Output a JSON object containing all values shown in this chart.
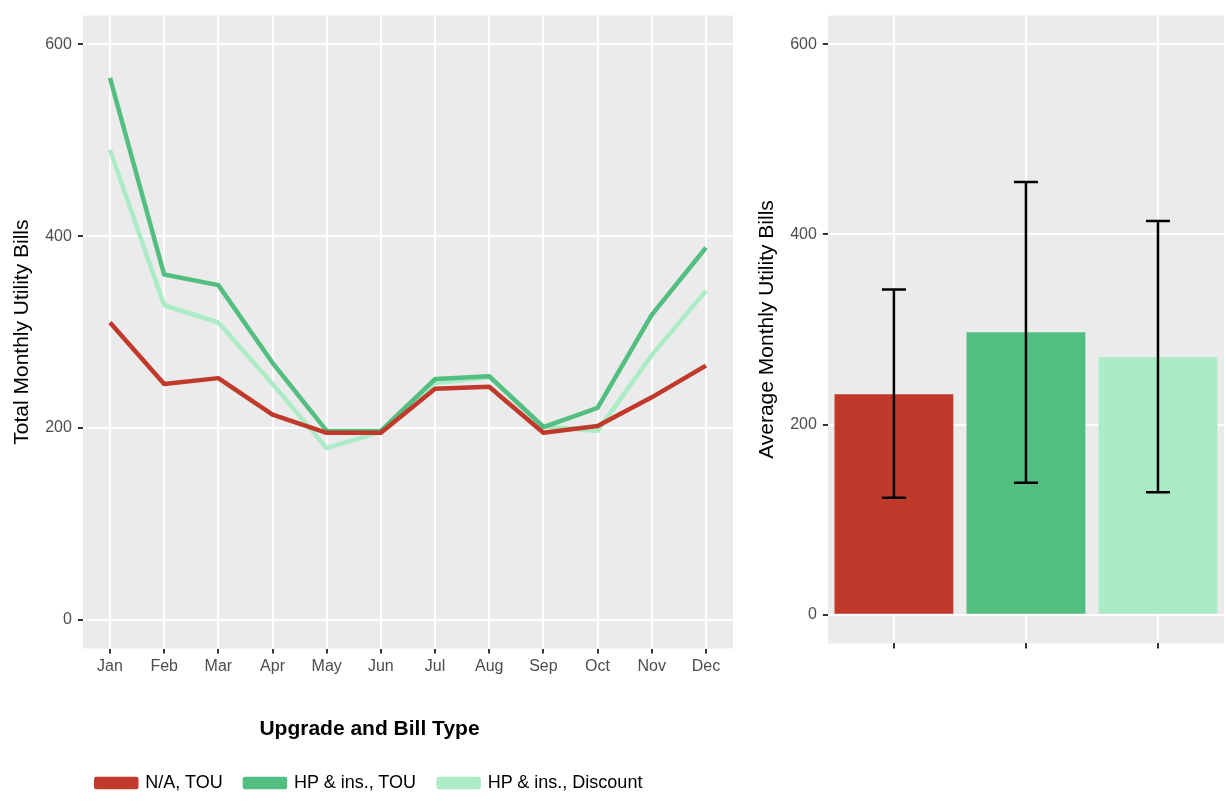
{
  "chart_data": [
    {
      "type": "line",
      "categories": [
        "Jan",
        "Feb",
        "Mar",
        "Apr",
        "May",
        "Jun",
        "Jul",
        "Aug",
        "Sep",
        "Oct",
        "Nov",
        "Dec"
      ],
      "ylabel": "Total Monthly Utility Bills",
      "ylim": [
        -30,
        630
      ],
      "yticks": [
        0,
        200,
        400,
        600
      ],
      "grid": true,
      "legend": "bottom",
      "legend_title": "Upgrade and Bill Type",
      "marker": "none",
      "line_style": "solid",
      "series": [
        {
          "name": "N/A, TOU",
          "color": "#c0392b",
          "values": [
            310,
            246,
            252,
            214,
            195,
            195,
            241,
            243,
            195,
            202,
            232,
            265
          ]
        },
        {
          "name": "HP & ins., TOU",
          "color": "#52be80",
          "values": [
            565,
            360,
            349,
            268,
            197,
            197,
            251,
            254,
            201,
            221,
            318,
            388
          ]
        },
        {
          "name": "HP & ins., Discount",
          "color": "#abebc6",
          "values": [
            490,
            328,
            310,
            246,
            179,
            196,
            247,
            253,
            202,
            197,
            276,
            343
          ]
        }
      ]
    },
    {
      "type": "bar",
      "categories": [
        null,
        null,
        null
      ],
      "values": [
        232,
        297,
        271
      ],
      "colors": [
        "#c0392b",
        "#52be80",
        "#abebc6"
      ],
      "errors": [
        [
          123,
          342
        ],
        [
          139,
          455
        ],
        [
          129,
          414
        ]
      ],
      "ylabel": "Average Monthly Utility Bills",
      "ylim": [
        -30,
        630
      ],
      "yticks": [
        0,
        200,
        400,
        600
      ],
      "grid": true
    }
  ]
}
